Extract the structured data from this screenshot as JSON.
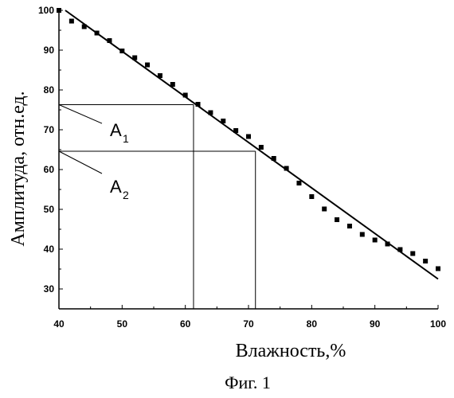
{
  "chart_data": {
    "type": "scatter",
    "xlabel": "Влажность,%",
    "ylabel": "Амплитуда, отн.ед.",
    "caption": "Фиг. 1",
    "xlim": [
      40,
      100
    ],
    "ylim": [
      25,
      100
    ],
    "x_ticks": [
      40,
      50,
      60,
      70,
      80,
      90,
      100
    ],
    "y_ticks": [
      30,
      40,
      50,
      60,
      70,
      80,
      90,
      100
    ],
    "grid": false,
    "series": [
      {
        "type": "scatter",
        "x": [
          40,
          42,
          44,
          46,
          48,
          50,
          52,
          54,
          56,
          58,
          60,
          62,
          64,
          66,
          68,
          70,
          72,
          74,
          76,
          78,
          80,
          82,
          84,
          86,
          88,
          90,
          92,
          94,
          96,
          98,
          100
        ],
        "y": [
          100,
          97.3,
          95.9,
          94.3,
          92.4,
          89.8,
          88.1,
          86.3,
          83.6,
          81.4,
          78.7,
          76.4,
          74.3,
          72.2,
          69.8,
          68.3,
          65.6,
          62.8,
          60.3,
          56.6,
          53.2,
          50.1,
          47.4,
          45.8,
          43.7,
          42.3,
          41.3,
          39.9,
          38.9,
          37.0,
          35.1
        ]
      },
      {
        "type": "line",
        "x": [
          41,
          100
        ],
        "y": [
          100,
          32.5
        ]
      }
    ],
    "annotations": [
      {
        "label": "A",
        "subscript": "1",
        "x": 61.3,
        "y": 76.3
      },
      {
        "label": "A",
        "subscript": "2",
        "x": 71.1,
        "y": 64.6
      }
    ]
  }
}
